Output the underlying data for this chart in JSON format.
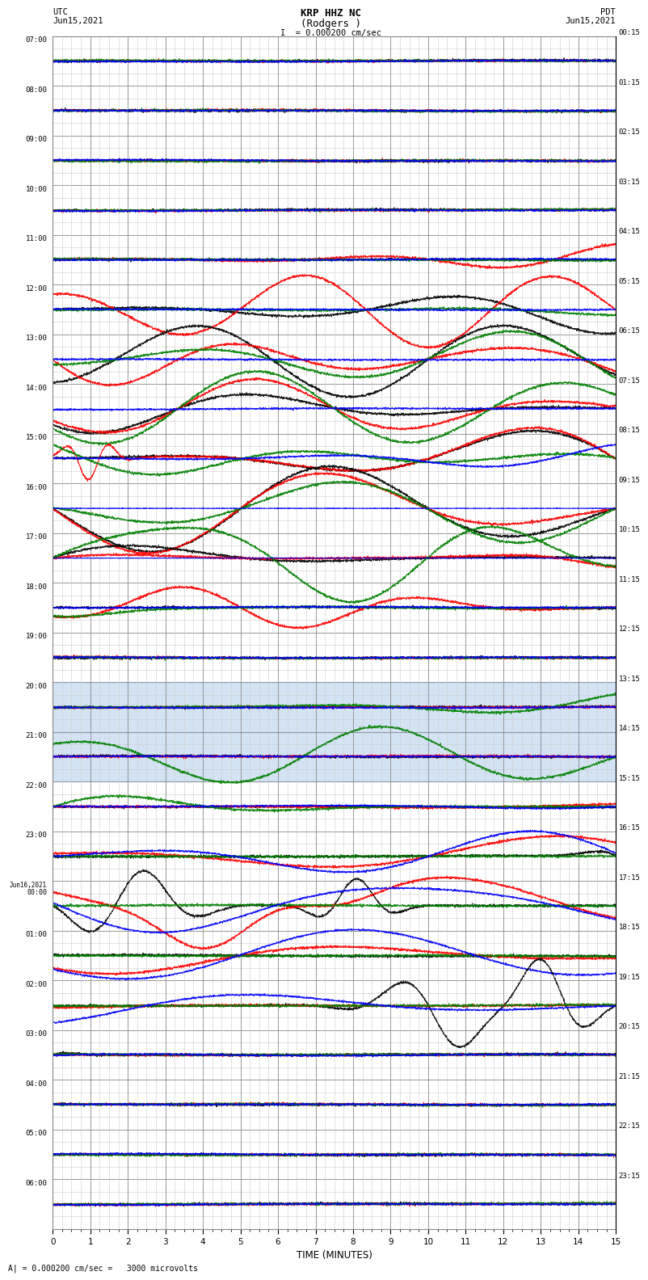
{
  "title_line1": "KRP HHZ NC",
  "title_line2": "(Rodgers )",
  "title_line3": "I  = 0.000200 cm/sec",
  "left_label_top": "UTC",
  "left_date": "Jun15,2021",
  "right_label_top": "PDT",
  "right_date": "Jun15,2021",
  "xlabel": "TIME (MINUTES)",
  "footer": "= 0.000200 cm/sec =   3000 microvolts",
  "xmin": 0,
  "xmax": 15,
  "num_rows": 24,
  "utc_labels": [
    "07:00",
    "08:00",
    "09:00",
    "10:00",
    "11:00",
    "12:00",
    "13:00",
    "14:00",
    "15:00",
    "16:00",
    "17:00",
    "18:00",
    "19:00",
    "20:00",
    "21:00",
    "22:00",
    "23:00",
    "Jun16,2021\n00:00",
    "01:00",
    "02:00",
    "03:00",
    "04:00",
    "05:00",
    "06:00"
  ],
  "pdt_labels": [
    "00:15",
    "01:15",
    "02:15",
    "03:15",
    "04:15",
    "05:15",
    "06:15",
    "07:15",
    "08:15",
    "09:15",
    "10:15",
    "11:15",
    "12:15",
    "13:15",
    "14:15",
    "15:15",
    "16:15",
    "17:15",
    "18:15",
    "19:15",
    "20:15",
    "21:15",
    "22:15",
    "23:15"
  ],
  "background_color": "#ffffff",
  "grid_major_color": "#888888",
  "grid_minor_color": "#cccccc",
  "highlight_rows": [
    13,
    14
  ],
  "highlight_color": "#aac8e8"
}
